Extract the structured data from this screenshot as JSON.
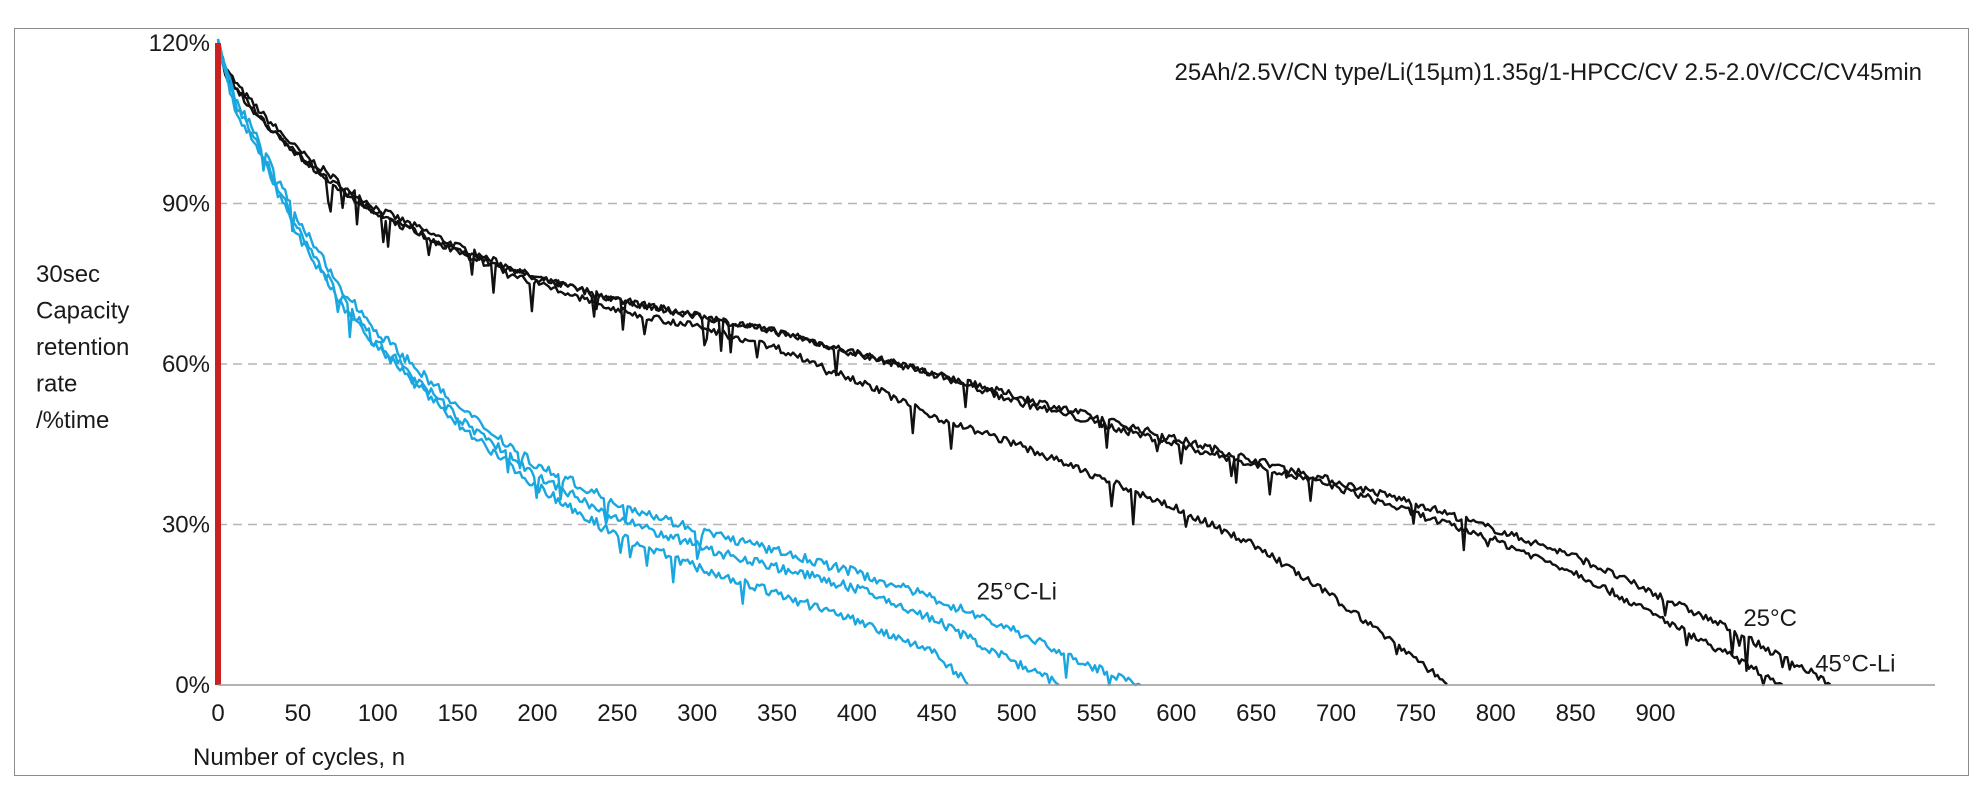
{
  "chart_data": {
    "type": "line",
    "title": "25Ah/2.5V/CN type/Li(15µm)1.35g/1-HPCC/CV 2.5-2.0V/CC/CV45min",
    "xlabel": "Number of cycles, n",
    "ylabel_lines": [
      "30sec",
      "Capacity",
      "retention",
      "rate",
      "/%time"
    ],
    "xlim": [
      0,
      1075
    ],
    "ylim": [
      0,
      120
    ],
    "x_ticks": [
      0,
      50,
      100,
      150,
      200,
      250,
      300,
      350,
      400,
      450,
      500,
      550,
      600,
      650,
      700,
      750,
      800,
      850,
      900
    ],
    "y_ticks": [
      0,
      30,
      60,
      90,
      120
    ],
    "y_tick_labels": [
      "0%",
      "30%",
      "60%",
      "90%",
      "120%"
    ],
    "grid": "horizontal-dashed",
    "colors": {
      "black_series": "#111111",
      "blue_series": "#1aa7e0",
      "marker_line": "#cc1f1f",
      "grid": "#b5b5b5"
    },
    "series": [
      {
        "group": "black",
        "x": [
          0,
          5,
          15,
          30,
          50,
          80,
          100,
          150,
          200,
          250,
          300,
          350,
          400,
          450,
          500,
          550,
          600,
          650,
          700,
          750,
          800,
          850,
          900,
          950,
          980,
          1000,
          1010
        ],
        "y": [
          120,
          115,
          111,
          106,
          100,
          93,
          89,
          82,
          76,
          72,
          69,
          66,
          62,
          58,
          54,
          50,
          46,
          42,
          38,
          34,
          29,
          24,
          17,
          10,
          5,
          2,
          0
        ]
      },
      {
        "group": "black",
        "x": [
          0,
          5,
          15,
          30,
          50,
          80,
          100,
          150,
          200,
          250,
          300,
          350,
          400,
          450,
          500,
          550,
          600,
          650,
          700,
          750,
          800,
          850,
          900,
          950,
          980
        ],
        "y": [
          120,
          114,
          110,
          105,
          99,
          92,
          88,
          81,
          76,
          72,
          69,
          66,
          62,
          58,
          53,
          49,
          45,
          41,
          37,
          32,
          27,
          21,
          13,
          5,
          0
        ]
      },
      {
        "group": "black",
        "x": [
          0,
          5,
          15,
          30,
          50,
          80,
          100,
          150,
          200,
          250,
          300,
          350,
          400,
          450,
          500,
          550,
          600,
          650,
          700,
          750,
          770
        ],
        "y": [
          120,
          114,
          110,
          105,
          99,
          92,
          88,
          81,
          75,
          70,
          67,
          63,
          57,
          50,
          45,
          39,
          33,
          26,
          16,
          5,
          0
        ]
      },
      {
        "group": "blue",
        "x": [
          0,
          10,
          25,
          50,
          75,
          100,
          150,
          200,
          250,
          300,
          350,
          400,
          450,
          500,
          550,
          578
        ],
        "y": [
          120,
          110,
          102,
          87,
          75,
          66,
          52,
          41,
          34,
          29,
          25,
          21,
          16,
          10,
          3,
          0
        ]
      },
      {
        "group": "blue",
        "x": [
          0,
          10,
          25,
          50,
          75,
          100,
          150,
          200,
          250,
          300,
          350,
          400,
          450,
          500,
          527
        ],
        "y": [
          120,
          109,
          101,
          85,
          73,
          64,
          50,
          39,
          31,
          26,
          22,
          18,
          12,
          4,
          0
        ]
      },
      {
        "group": "blue",
        "x": [
          0,
          10,
          25,
          50,
          75,
          100,
          150,
          200,
          250,
          300,
          350,
          400,
          450,
          470
        ],
        "y": [
          120,
          108,
          100,
          84,
          72,
          63,
          49,
          37,
          28,
          22,
          17,
          12,
          6,
          0
        ]
      }
    ],
    "annotations": [
      {
        "text": "25°C-Li",
        "x": 475,
        "y": 16,
        "color": "#1aa7e0"
      },
      {
        "text": "25°C",
        "x": 955,
        "y": 11,
        "color": "#111111"
      },
      {
        "text": "45°C-Li",
        "x": 1000,
        "y": 2.5,
        "color": "#111111"
      }
    ],
    "vertical_marker_x": 0
  }
}
